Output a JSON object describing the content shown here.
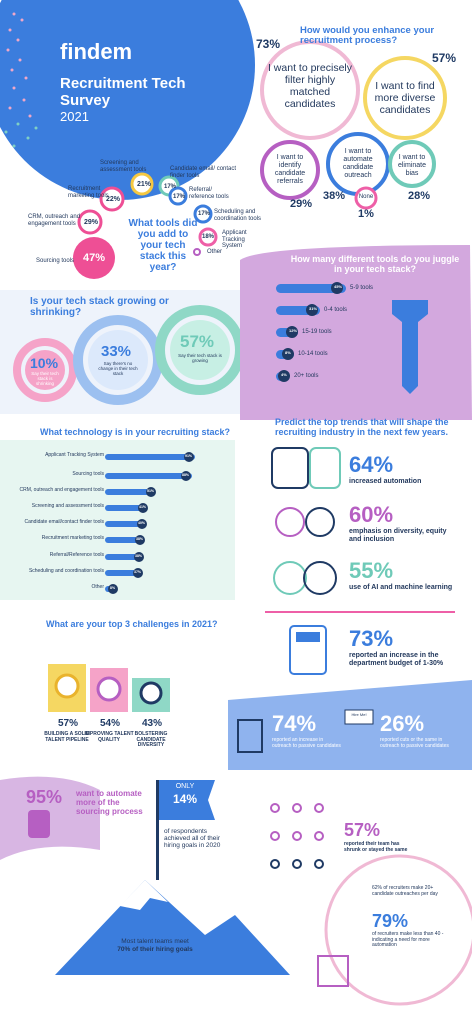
{
  "header": {
    "brand": "findem",
    "title": "Recruitment Tech Survey",
    "year": "2021"
  },
  "enhance": {
    "question": "How would you enhance your recruitment process?",
    "items": [
      {
        "label": "I want to precisely filter highly matched candidates",
        "value": "73%"
      },
      {
        "label": "I want to find more diverse candidates",
        "value": "57%"
      },
      {
        "label": "I want to identify candidate referrals",
        "value": "29%"
      },
      {
        "label": "I want to automate candidate outreach",
        "value": "38%"
      },
      {
        "label": "I want to eliminate bias",
        "value": "28%"
      },
      {
        "label": "None",
        "value": "1%"
      }
    ]
  },
  "tools": {
    "question": "What tools did you add to your tech stack this year?",
    "items": [
      {
        "label": "Screening and assessment tools",
        "value": "21%"
      },
      {
        "label": "Candidate email/ contact finder tools",
        "value": "17%"
      },
      {
        "label": "Recruitment marketing tools",
        "value": "22%"
      },
      {
        "label": "Referral/ reference tools",
        "value": "17%"
      },
      {
        "label": "CRM, outreach and engagement tools",
        "value": "29%"
      },
      {
        "label": "Scheduling and coordination tools",
        "value": "17%"
      },
      {
        "label": "Applicant Tracking System",
        "value": "18%"
      },
      {
        "label": "Other",
        "value": ""
      },
      {
        "label": "Sourcing tools",
        "value": "47%"
      }
    ]
  },
  "growth": {
    "question": "Is your tech stack growing or shrinking?",
    "items": [
      {
        "label": "Say their tech stack is shrinking",
        "value": "10%"
      },
      {
        "label": "Say there's no change in their tech stack",
        "value": "33%"
      },
      {
        "label": "Say their tech stack is growing",
        "value": "57%"
      }
    ]
  },
  "juggle": {
    "question": "How many different tools do you juggle in your tech stack?",
    "items": [
      {
        "label": "5-9 tools",
        "value": "45%"
      },
      {
        "label": "0-4 tools",
        "value": "31%"
      },
      {
        "label": "15-19 tools",
        "value": "12%"
      },
      {
        "label": "10-14 tools",
        "value": "8%"
      },
      {
        "label": "20+ tools",
        "value": "4%"
      }
    ]
  },
  "stack": {
    "question": "What technology is in your recruiting stack?",
    "items": [
      {
        "label": "Applicant Tracking System",
        "value": "91%"
      },
      {
        "label": "Sourcing tools",
        "value": "88%"
      },
      {
        "label": "CRM, outreach and engagement tools",
        "value": "51%"
      },
      {
        "label": "Screening and assessment tools",
        "value": "41%"
      },
      {
        "label": "Candidate email/contact finder tools",
        "value": "40%"
      },
      {
        "label": "Recruitment marketing tools",
        "value": "38%"
      },
      {
        "label": "Referral/Reference tools",
        "value": "38%"
      },
      {
        "label": "Scheduling and coordination tools",
        "value": "37%"
      },
      {
        "label": "Other",
        "value": "8%"
      }
    ]
  },
  "trends": {
    "question": "Predict the top trends that will shape the recruiting industry in the next few years.",
    "items": [
      {
        "label": "increased automation",
        "value": "64%"
      },
      {
        "label": "emphasis on diversity, equity and inclusion",
        "value": "60%"
      },
      {
        "label": "use of AI and machine learning",
        "value": "55%"
      }
    ]
  },
  "budget": {
    "value": "73%",
    "label": "reported an increase in the department budget of 1-30%"
  },
  "challenges": {
    "question": "What are your top 3 challenges in 2021?",
    "items": [
      {
        "label": "BUILDING A SOLID TALENT PIPELINE",
        "value": "57%"
      },
      {
        "label": "IMPROVING TALENT QUALITY",
        "value": "54%"
      },
      {
        "label": "BOLSTERING CANDIDATE DIVERSITY",
        "value": "43%"
      }
    ]
  },
  "outreach": {
    "increase": {
      "value": "74%",
      "label": "reported an increase in outreach to passive candidates"
    },
    "cut": {
      "value": "26%",
      "label": "reported cuts or the same in outreach to passive candidates"
    },
    "sign": "Hire Me!"
  },
  "automate": {
    "value": "95%",
    "label": "want to automate more of the sourcing process"
  },
  "goals": {
    "only": "ONLY",
    "value": "14%",
    "label": "of respondents achieved all of their hiring goals in 2020",
    "meet_label": "Most talent teams meet",
    "meet_bold": "70% of their hiring goals"
  },
  "team": {
    "value": "57%",
    "label": "reported their team has shrunk or stayed the same"
  },
  "daily": {
    "over": {
      "value": "62%",
      "label": "62% of recruiters make 20+ candidate outreaches per day"
    },
    "under": {
      "value": "79%",
      "label": "of recruiters make less than 40 - indicating a need for more automation"
    }
  },
  "colors": {
    "brand_blue": "#3b7ddd",
    "navy": "#1f3a64",
    "pink": "#ee4f95",
    "purple": "#b65fc2",
    "teal": "#6fcab8",
    "yellow": "#f5d762"
  }
}
